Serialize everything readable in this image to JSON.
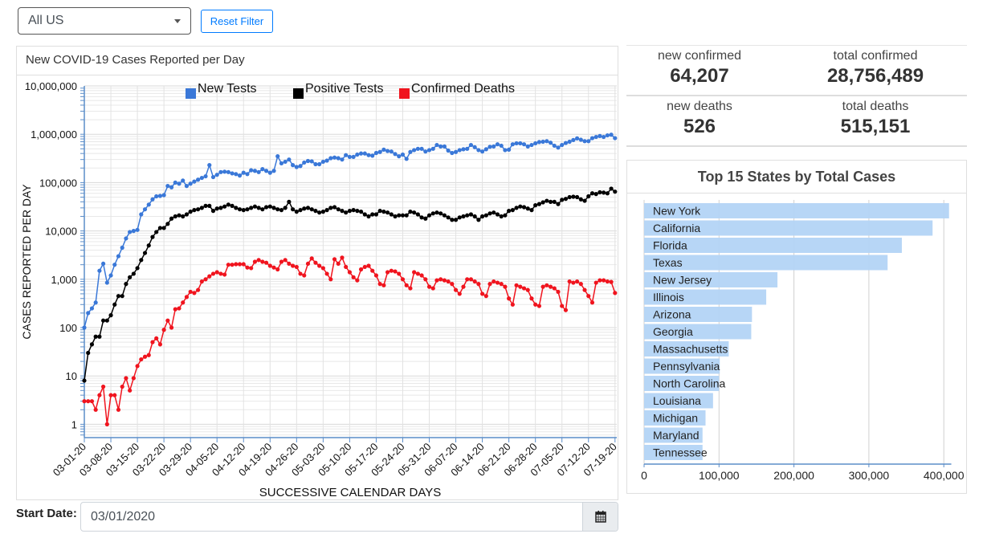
{
  "filter": {
    "selected": "All US",
    "reset_label": "Reset Filter"
  },
  "line_card": {
    "title": "New COVID-19 Cases Reported per Day"
  },
  "start_date": {
    "label": "Start Date:",
    "value": "03/01/2020",
    "icon": "calendar-icon"
  },
  "stats": [
    {
      "label": "new confirmed",
      "value": "64,207"
    },
    {
      "label": "total confirmed",
      "value": "28,756,489"
    },
    {
      "label": "new deaths",
      "value": "526"
    },
    {
      "label": "total deaths",
      "value": "515,151"
    }
  ],
  "bar_card": {
    "title": "Top 15 States by Total Cases"
  },
  "chart_data": [
    {
      "type": "line",
      "xlabel": "SUCCESSIVE CALENDAR DAYS",
      "ylabel": "CASES REPORTED PER DAY",
      "yscale": "log",
      "ylim": [
        1,
        10000000
      ],
      "yticks": [
        "1",
        "10",
        "100",
        "1,000",
        "10,000",
        "100,000",
        "1,000,000",
        "10,000,000"
      ],
      "x": {
        "start": "03-01-20",
        "end": "07-19-20",
        "interval": "daily"
      },
      "xticks": [
        "03-01-20",
        "03-08-20",
        "03-15-20",
        "03-22-20",
        "03-29-20",
        "04-05-20",
        "04-12-20",
        "04-19-20",
        "04-26-20",
        "05-03-20",
        "05-10-20",
        "05-17-20",
        "05-24-20",
        "05-31-20",
        "06-07-20",
        "06-14-20",
        "06-21-20",
        "06-28-20",
        "07-05-20",
        "07-12-20",
        "07-19-20"
      ],
      "grid": true,
      "legend": "top",
      "series": [
        {
          "name": "New Tests",
          "color": "#3a78d8",
          "values": [
            100,
            200,
            250,
            330,
            1500,
            2100,
            850,
            1200,
            2000,
            3000,
            4500,
            7000,
            9500,
            10000,
            10500,
            22000,
            28000,
            35000,
            45000,
            52000,
            53000,
            55000,
            85000,
            80000,
            100000,
            95000,
            110000,
            85000,
            95000,
            105000,
            115000,
            125000,
            135000,
            230000,
            130000,
            145000,
            165000,
            168000,
            165000,
            155000,
            150000,
            140000,
            160000,
            150000,
            180000,
            175000,
            165000,
            190000,
            175000,
            160000,
            175000,
            350000,
            250000,
            270000,
            300000,
            230000,
            210000,
            220000,
            260000,
            280000,
            275000,
            240000,
            240000,
            270000,
            285000,
            320000,
            330000,
            320000,
            300000,
            370000,
            340000,
            340000,
            380000,
            400000,
            400000,
            370000,
            360000,
            410000,
            430000,
            480000,
            450000,
            440000,
            390000,
            350000,
            380000,
            310000,
            430000,
            470000,
            500000,
            500000,
            440000,
            470000,
            500000,
            600000,
            560000,
            560000,
            460000,
            410000,
            430000,
            470000,
            490000,
            500000,
            600000,
            540000,
            470000,
            440000,
            490000,
            550000,
            560000,
            620000,
            580000,
            470000,
            480000,
            620000,
            650000,
            650000,
            620000,
            560000,
            600000,
            650000,
            690000,
            700000,
            720000,
            670000,
            580000,
            530000,
            600000,
            660000,
            700000,
            760000,
            820000,
            770000,
            720000,
            720000,
            830000,
            880000,
            920000,
            880000,
            950000,
            980000,
            830000
          ]
        },
        {
          "name": "Positive Tests",
          "color": "#000000",
          "values": [
            8,
            30,
            45,
            65,
            65,
            140,
            140,
            180,
            300,
            450,
            450,
            800,
            1100,
            1300,
            1700,
            2500,
            3500,
            5000,
            7500,
            9500,
            11500,
            11500,
            14000,
            18000,
            20000,
            21000,
            20000,
            22000,
            25000,
            27000,
            28000,
            30000,
            33000,
            33000,
            26000,
            29000,
            30000,
            32000,
            35000,
            33000,
            30000,
            28000,
            27000,
            28000,
            30000,
            32000,
            30000,
            28000,
            31000,
            32000,
            30000,
            28000,
            27000,
            30000,
            40000,
            28000,
            25000,
            27000,
            29000,
            30000,
            28000,
            26000,
            24000,
            25000,
            27000,
            30000,
            31000,
            28000,
            26000,
            24000,
            26000,
            27000,
            26000,
            25000,
            22000,
            20000,
            22000,
            22000,
            26000,
            25000,
            24000,
            22000,
            20000,
            21000,
            21000,
            21000,
            25000,
            24000,
            22000,
            19000,
            18000,
            21000,
            23000,
            24000,
            23000,
            21000,
            19000,
            17000,
            17000,
            19000,
            20000,
            21000,
            22000,
            20000,
            17000,
            20000,
            21000,
            23000,
            24000,
            22000,
            20000,
            21000,
            26000,
            27000,
            30000,
            32000,
            31000,
            29000,
            27000,
            34000,
            36000,
            39000,
            42000,
            40000,
            40000,
            36000,
            44000,
            46000,
            50000,
            51000,
            50000,
            45000,
            42000,
            52000,
            60000,
            58000,
            63000,
            62000,
            60000,
            75000,
            65000
          ]
        },
        {
          "name": "Confirmed Deaths",
          "color": "#f0141e",
          "values": [
            3,
            3,
            3,
            2,
            4,
            6,
            1,
            4,
            4,
            2,
            6,
            9,
            5,
            9,
            16,
            22,
            25,
            27,
            50,
            60,
            45,
            90,
            140,
            100,
            240,
            250,
            330,
            430,
            550,
            520,
            600,
            900,
            1000,
            1150,
            1300,
            1400,
            1300,
            1250,
            2000,
            2000,
            2050,
            2050,
            2050,
            1750,
            1700,
            2300,
            2500,
            2300,
            2200,
            1900,
            1750,
            1600,
            2300,
            2500,
            2100,
            1900,
            1800,
            1300,
            1200,
            2100,
            2700,
            2200,
            1900,
            1700,
            1300,
            1000,
            2600,
            2100,
            2800,
            1800,
            1400,
            1100,
            950,
            1600,
            1800,
            1900,
            1500,
            1200,
            800,
            750,
            1400,
            1500,
            1450,
            1300,
            1000,
            750,
            650,
            1400,
            1300,
            1200,
            1000,
            700,
            650,
            950,
            1000,
            950,
            900,
            800,
            600,
            500,
            700,
            1000,
            1000,
            900,
            800,
            500,
            450,
            800,
            900,
            850,
            800,
            700,
            400,
            300,
            750,
            700,
            650,
            600,
            400,
            300,
            280,
            700,
            750,
            700,
            650,
            550,
            280,
            230,
            900,
            850,
            900,
            800,
            600,
            450,
            330,
            850,
            950,
            950,
            900,
            880,
            520
          ]
        }
      ]
    },
    {
      "type": "bar",
      "orientation": "horizontal",
      "color": "#b3d4f5",
      "xlim": [
        0,
        410000
      ],
      "xticks": [
        "0",
        "100,000",
        "200,000",
        "300,000",
        "400,000"
      ],
      "grid": true,
      "categories": [
        "New York",
        "California",
        "Florida",
        "Texas",
        "New Jersey",
        "Illinois",
        "Arizona",
        "Georgia",
        "Massachusetts",
        "Pennsylvania",
        "North Carolina",
        "Louisiana",
        "Michigan",
        "Maryland",
        "Tennessee"
      ],
      "values": [
        407000,
        385000,
        344000,
        325000,
        178000,
        163000,
        144000,
        143000,
        113000,
        101000,
        100000,
        92000,
        82000,
        78000,
        78000
      ]
    }
  ]
}
